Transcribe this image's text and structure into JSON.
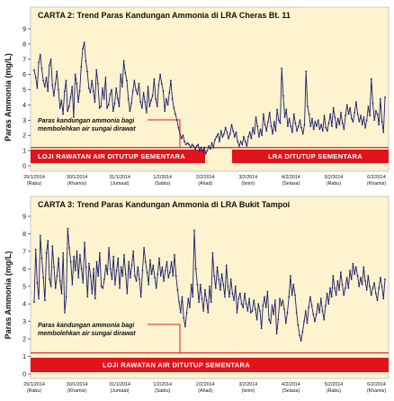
{
  "chart_data": [
    {
      "type": "line",
      "title": "CARTA 2: Trend Paras Kandungan Ammonia di LRA  Cheras Bt. 11",
      "ylabel": "Paras Ammonia (mg/L)",
      "ylim": [
        0,
        9
      ],
      "yticks": [
        0,
        1,
        2,
        3,
        4,
        5,
        6,
        7,
        8,
        9
      ],
      "xlim": [
        0,
        8.2
      ],
      "x_ticks": [
        {
          "date": "29/1/2014",
          "day": "(Rabu)"
        },
        {
          "date": "30/1/2014",
          "day": "(Khamis)"
        },
        {
          "date": "31/1/2014",
          "day": "(Jumaat)"
        },
        {
          "date": "1/2/2014",
          "day": "(Sabtu)"
        },
        {
          "date": "2/2/2014",
          "day": "(Ahad)"
        },
        {
          "date": "3/2/2014",
          "day": "(Isnin)"
        },
        {
          "date": "4/2/2014",
          "day": "(Selasa)"
        },
        {
          "date": "5/2/2014",
          "day": "(Rabu)"
        },
        {
          "date": "6/2/2014",
          "day": "(Khamis)"
        }
      ],
      "threshold": 1.2,
      "threshold_note_line1": "Paras kandungan ammonia bagi",
      "threshold_note_line2": "membolehkan air sungai dirawat",
      "band_labels": [
        "LOJI RAWATAN AIR DITUTUP SEMENTARA",
        "LRA DITUTUP SEMENTARA"
      ],
      "series": [
        {
          "values": [
            6.3,
            5.8,
            5.1,
            6.8,
            7.3,
            6.4,
            5.6,
            5.2,
            5.8,
            4.9,
            6.6,
            7.0,
            5.3,
            4.6,
            5.4,
            6.2,
            5.0,
            3.8,
            4.3,
            3.4,
            4.9,
            5.6,
            3.6,
            3.9,
            4.5,
            5.2,
            3.2,
            6.0,
            5.4,
            4.2,
            4.9,
            6.5,
            7.7,
            8.1,
            6.9,
            6.2,
            5.1,
            4.8,
            5.6,
            4.9,
            4.2,
            6.3,
            5.4,
            3.8,
            3.9,
            5.1,
            4.4,
            5.8,
            3.8,
            4.0,
            4.7,
            5.0,
            3.6,
            4.1,
            5.1,
            4.4,
            3.9,
            6.0,
            5.2,
            6.9,
            6.1,
            5.6,
            4.4,
            3.6,
            4.1,
            4.9,
            5.6,
            5.0,
            4.7,
            5.4,
            4.2,
            3.8,
            4.8,
            4.2,
            3.5,
            5.2,
            3.9,
            4.3,
            4.6,
            5.7,
            4.4,
            3.9,
            5.3,
            6.0,
            5.4,
            4.9,
            3.6,
            4.4,
            4.0,
            4.8,
            5.6,
            4.4,
            3.8,
            3.4,
            3.0,
            2.5,
            2.1,
            1.8,
            2.0,
            1.6,
            1.4,
            1.5,
            1.4,
            1.2,
            1.4,
            1.3,
            1.1,
            1.3,
            1.4,
            1.0,
            1.2,
            0.9,
            1.2,
            0.8,
            1.0,
            1.3,
            1.1,
            1.5,
            1.2,
            1.7,
            1.9,
            2.1,
            1.6,
            2.3,
            1.9,
            2.1,
            2.5,
            2.2,
            1.8,
            2.1,
            2.7,
            2.3,
            1.9,
            2.2,
            1.6,
            1.3,
            1.6,
            1.4,
            1.9,
            1.6,
            1.3,
            1.9,
            2.2,
            1.8,
            2.5,
            2.1,
            3.2,
            2.6,
            1.9,
            2.4,
            2.0,
            3.4,
            2.7,
            2.3,
            2.9,
            3.5,
            2.6,
            2.1,
            2.9,
            2.3,
            3.7,
            3.0,
            2.8,
            6.4,
            4.6,
            3.2,
            3.7,
            2.6,
            3.1,
            2.6,
            2.2,
            3.4,
            2.8,
            2.3,
            2.6,
            3.0,
            2.5,
            2.1,
            2.7,
            6.2,
            3.9,
            3.4,
            2.6,
            3.1,
            2.4,
            2.9,
            2.6,
            3.0,
            2.4,
            2.7,
            2.3,
            3.3,
            2.5,
            2.3,
            2.8,
            3.4,
            2.6,
            3.8,
            3.2,
            2.5,
            3.1,
            2.7,
            3.5,
            2.8,
            2.4,
            3.3,
            4.0,
            3.4,
            3.8,
            3.1,
            2.9,
            3.5,
            4.2,
            3.4,
            2.9,
            3.3,
            2.7,
            3.2,
            2.5,
            3.0,
            3.9,
            3.3,
            5.7,
            4.1,
            3.0,
            3.6,
            3.4,
            2.7,
            4.4,
            2.9,
            2.2,
            4.5
          ]
        }
      ]
    },
    {
      "type": "line",
      "title": "CARTA 3: Trend Paras Kandungan Ammonia di LRA Bukit Tampoi",
      "ylabel": "Paras Ammonia (mg/L)",
      "ylim": [
        0,
        9
      ],
      "yticks": [
        0,
        1,
        2,
        3,
        4,
        5,
        6,
        7,
        8,
        9
      ],
      "xlim": [
        0,
        8.2
      ],
      "x_ticks": [
        {
          "date": "29/1/2014",
          "day": "(Rabu)"
        },
        {
          "date": "30/1/2014",
          "day": "(Khamis)"
        },
        {
          "date": "31/1/2014",
          "day": "(Jumaat)"
        },
        {
          "date": "1/2/2014",
          "day": "(Sabtu)"
        },
        {
          "date": "2/2/2014",
          "day": "(Ahad)"
        },
        {
          "date": "3/2/2014",
          "day": "(Isnin)"
        },
        {
          "date": "4/2/2014",
          "day": "(Selasa)"
        },
        {
          "date": "5/2/2014",
          "day": "(Rabu)"
        },
        {
          "date": "6/2/2014",
          "day": "(Khamis)"
        }
      ],
      "threshold": 1.2,
      "threshold_note_line1": "Paras kandungan ammonia bagi",
      "threshold_note_line2": "membolehkan air sungai dirawat",
      "band_labels": [
        "LOJI RAWATAN AIR DITUTUP SEMENTARA"
      ],
      "series": [
        {
          "values": [
            4.1,
            7.1,
            5.2,
            4.3,
            7.9,
            6.6,
            5.5,
            4.2,
            6.9,
            7.6,
            5.4,
            5.0,
            7.3,
            6.1,
            4.9,
            5.6,
            6.6,
            5.3,
            4.6,
            6.9,
            3.5,
            4.4,
            8.3,
            7.2,
            6.4,
            5.1,
            6.7,
            5.9,
            7.0,
            5.5,
            6.8,
            6.0,
            5.2,
            7.5,
            6.1,
            4.4,
            6.3,
            5.6,
            4.6,
            6.0,
            4.3,
            6.4,
            5.6,
            6.9,
            5.0,
            4.9,
            5.4,
            6.2,
            5.7,
            7.2,
            6.0,
            5.4,
            6.7,
            5.1,
            5.9,
            6.6,
            4.9,
            6.1,
            5.6,
            6.8,
            5.7,
            4.6,
            6.4,
            5.5,
            6.2,
            7.0,
            5.6,
            5.3,
            6.1,
            5.4,
            4.4,
            5.9,
            7.2,
            6.4,
            5.8,
            5.1,
            6.5,
            5.7,
            6.2,
            5.5,
            4.9,
            5.7,
            6.6,
            5.6,
            6.1,
            5.3,
            5.9,
            6.4,
            5.5,
            5.8,
            6.4,
            5.6,
            6.8,
            5.6,
            4.8,
            4.1,
            3.5,
            4.4,
            3.2,
            2.7,
            3.5,
            4.3,
            3.8,
            5.1,
            4.4,
            8.2,
            6.0,
            5.1,
            4.1,
            5.1,
            4.3,
            3.6,
            4.8,
            4.2,
            3.5,
            5.0,
            4.1,
            6.9,
            5.6,
            4.9,
            6.1,
            5.4,
            4.8,
            5.7,
            5.1,
            4.4,
            6.2,
            5.0,
            4.4,
            5.4,
            4.6,
            4.2,
            5.0,
            3.5,
            4.3,
            4.6,
            4.0,
            3.8,
            4.6,
            4.0,
            3.6,
            4.3,
            3.5,
            3.6,
            4.2,
            3.7,
            3.1,
            4.0,
            3.6,
            2.6,
            3.9,
            4.4,
            3.8,
            4.7,
            3.1,
            2.9,
            3.9,
            3.4,
            4.2,
            2.3,
            3.1,
            4.3,
            3.9,
            4.2,
            3.7,
            2.9,
            3.5,
            4.4,
            5.6,
            4.5,
            5.1,
            4.5,
            3.5,
            2.8,
            2.2,
            1.9,
            2.4,
            3.0,
            3.6,
            2.9,
            3.8,
            4.4,
            3.9,
            3.4,
            3.0,
            3.4,
            4.0,
            3.5,
            4.3,
            3.6,
            3.1,
            3.9,
            4.6,
            4.0,
            4.9,
            4.4,
            5.6,
            4.9,
            4.5,
            5.3,
            4.8,
            5.8,
            5.1,
            4.5,
            4.9,
            5.5,
            4.9,
            5.9,
            5.4,
            6.3,
            5.7,
            6.1,
            5.6,
            5.0,
            5.5,
            5.1,
            6.1,
            5.3,
            4.8,
            5.6,
            5.0,
            4.5,
            4.9,
            5.2,
            4.6,
            4.2,
            4.9,
            5.5,
            5.0,
            4.3,
            5.4
          ]
        }
      ]
    }
  ]
}
